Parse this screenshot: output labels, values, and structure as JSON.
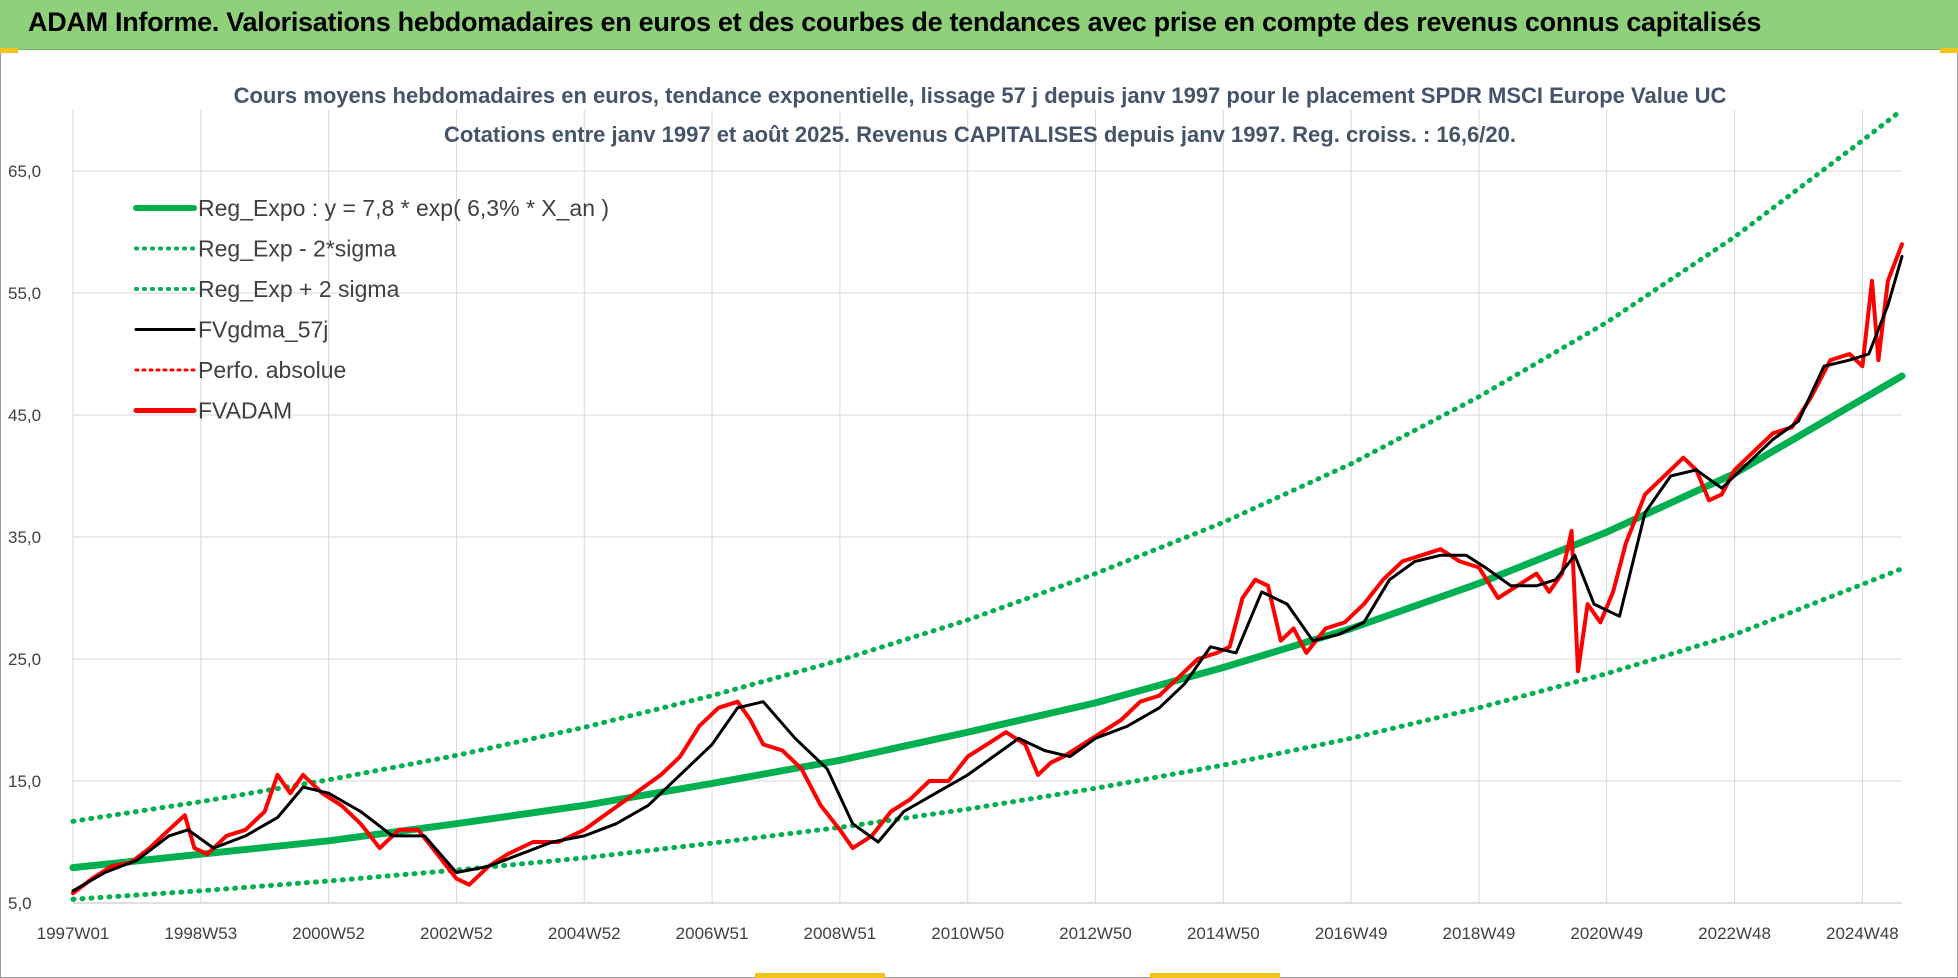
{
  "header": {
    "banner_title": "ADAM Informe. Valorisations hebdomadaires en euros et des courbes de tendances avec prise en compte des revenus connus capitalisés"
  },
  "colors": {
    "banner": "#8fd17a",
    "trend_green": "#00b050",
    "price_red": "#ff0000",
    "smooth_black": "#000000",
    "title_text": "#44546a"
  },
  "chart_data": {
    "type": "line",
    "title": "Cours moyens hebdomadaires en euros, tendance exponentielle, lissage 57 j depuis janv 1997 pour le placement SPDR MSCI Europe Value UC",
    "subtitle": "Cotations entre janv 1997 et août 2025. Revenus CAPITALISES depuis janv 1997. Reg. croiss. : 16,6/20.",
    "xlabel": "",
    "ylabel": "",
    "x_range": [
      1997.0,
      2025.62
    ],
    "ylim": [
      5,
      70
    ],
    "yticks": [
      5,
      15,
      25,
      35,
      45,
      55,
      65
    ],
    "ytick_labels": [
      "5,0",
      "15,0",
      "25,0",
      "35,0",
      "45,0",
      "55,0",
      "65,0"
    ],
    "xtick_labels": [
      "1997W01",
      "1998W53",
      "2000W52",
      "2002W52",
      "2004W52",
      "2006W51",
      "2008W51",
      "2010W50",
      "2012W50",
      "2014W50",
      "2016W49",
      "2018W49",
      "2020W49",
      "2022W48",
      "2024W48"
    ],
    "xtick_positions": [
      1997.0,
      1999.0,
      2001.0,
      2003.0,
      2005.0,
      2007.0,
      2009.0,
      2011.0,
      2013.0,
      2015.0,
      2017.0,
      2019.0,
      2021.0,
      2023.0,
      2025.0
    ],
    "grid": true,
    "legend_position": "top-left",
    "legend": [
      {
        "label": "Reg_Expo : y = 7,8 * exp( 6,3% *  X_an )",
        "color": "#00b050",
        "style": "solid-thick"
      },
      {
        "label": "Reg_Exp - 2*sigma",
        "color": "#00b050",
        "style": "dotted"
      },
      {
        "label": "Reg_Exp + 2 sigma",
        "color": "#00b050",
        "style": "dotted"
      },
      {
        "label": "FVgdma_57j",
        "color": "#000000",
        "style": "solid"
      },
      {
        "label": "Perfo. absolue",
        "color": "#ff0000",
        "style": "dotted"
      },
      {
        "label": "FVADAM",
        "color": "#ff0000",
        "style": "solid-thick"
      }
    ],
    "series": [
      {
        "name": "Reg_Expo : y = 7,8 * exp( 6,3% *  X_an )",
        "x": [
          1997.0,
          1999.0,
          2001.0,
          2003.0,
          2005.0,
          2007.0,
          2009.0,
          2011.0,
          2013.0,
          2015.0,
          2017.0,
          2019.0,
          2021.0,
          2023.0,
          2025.62
        ],
        "y": [
          7.9,
          9.0,
          10.1,
          11.5,
          13.0,
          14.8,
          16.7,
          19.0,
          21.4,
          24.3,
          27.5,
          31.2,
          35.4,
          40.2,
          48.2
        ]
      },
      {
        "name": "Reg_Exp - 2*sigma",
        "x": [
          1997.0,
          1999.0,
          2001.0,
          2003.0,
          2005.0,
          2007.0,
          2009.0,
          2011.0,
          2013.0,
          2015.0,
          2017.0,
          2019.0,
          2021.0,
          2023.0,
          2025.62
        ],
        "y": [
          5.3,
          6.0,
          6.8,
          7.7,
          8.7,
          9.9,
          11.2,
          12.7,
          14.4,
          16.3,
          18.5,
          21.0,
          23.8,
          27.0,
          32.4
        ]
      },
      {
        "name": "Reg_Exp + 2 sigma",
        "x": [
          1997.0,
          1999.0,
          2001.0,
          2003.0,
          2005.0,
          2007.0,
          2009.0,
          2011.0,
          2013.0,
          2015.0,
          2017.0,
          2019.0,
          2021.0,
          2023.0,
          2025.0,
          2025.62
        ],
        "y": [
          11.7,
          13.3,
          15.1,
          17.1,
          19.4,
          22.0,
          24.9,
          28.2,
          32.0,
          36.2,
          41.0,
          46.5,
          52.6,
          59.6,
          67.5,
          70.0
        ]
      },
      {
        "name": "FVgdma_57j",
        "x": [
          1997.0,
          1997.5,
          1998.0,
          1998.5,
          1998.8,
          1999.2,
          1999.7,
          2000.2,
          2000.6,
          2001.0,
          2001.5,
          2002.0,
          2002.5,
          2003.0,
          2003.5,
          2004.0,
          2004.5,
          2005.0,
          2005.5,
          2006.0,
          2006.5,
          2007.0,
          2007.4,
          2007.8,
          2008.3,
          2008.8,
          2009.2,
          2009.6,
          2010.0,
          2010.5,
          2011.0,
          2011.4,
          2011.8,
          2012.2,
          2012.6,
          2013.0,
          2013.5,
          2014.0,
          2014.4,
          2014.8,
          2015.2,
          2015.6,
          2016.0,
          2016.4,
          2016.8,
          2017.2,
          2017.6,
          2018.0,
          2018.4,
          2018.8,
          2019.1,
          2019.5,
          2019.9,
          2020.2,
          2020.5,
          2020.8,
          2021.2,
          2021.6,
          2022.0,
          2022.4,
          2022.8,
          2023.2,
          2023.6,
          2024.0,
          2024.4,
          2024.8,
          2025.1,
          2025.4,
          2025.62
        ],
        "y": [
          6.0,
          7.5,
          8.5,
          10.5,
          11.0,
          9.5,
          10.5,
          12.0,
          14.5,
          14.0,
          12.5,
          10.5,
          10.5,
          7.5,
          8.0,
          9.0,
          10.0,
          10.5,
          11.5,
          13.0,
          15.5,
          18.0,
          21.0,
          21.5,
          18.5,
          16.0,
          11.5,
          10.0,
          12.5,
          14.0,
          15.5,
          17.0,
          18.5,
          17.5,
          17.0,
          18.5,
          19.5,
          21.0,
          23.0,
          26.0,
          25.5,
          30.5,
          29.5,
          26.5,
          27.0,
          28.0,
          31.5,
          33.0,
          33.5,
          33.5,
          32.5,
          31.0,
          31.0,
          31.5,
          33.5,
          29.5,
          28.5,
          37.0,
          40.0,
          40.5,
          39.0,
          41.0,
          43.0,
          44.5,
          49.0,
          49.5,
          50.0,
          54.0,
          58.0
        ]
      },
      {
        "name": "FVADAM",
        "x": [
          1997.0,
          1997.3,
          1997.6,
          1997.9,
          1998.2,
          1998.5,
          1998.75,
          1998.9,
          1999.1,
          1999.4,
          1999.7,
          2000.0,
          2000.2,
          2000.4,
          2000.6,
          2000.9,
          2001.2,
          2001.5,
          2001.8,
          2002.1,
          2002.4,
          2002.7,
          2003.0,
          2003.2,
          2003.5,
          2003.8,
          2004.2,
          2004.6,
          2005.0,
          2005.4,
          2005.8,
          2006.2,
          2006.5,
          2006.8,
          2007.1,
          2007.4,
          2007.6,
          2007.8,
          2008.1,
          2008.4,
          2008.7,
          2009.0,
          2009.2,
          2009.5,
          2009.8,
          2010.1,
          2010.4,
          2010.7,
          2011.0,
          2011.3,
          2011.6,
          2011.9,
          2012.1,
          2012.3,
          2012.5,
          2012.8,
          2013.1,
          2013.4,
          2013.7,
          2014.0,
          2014.3,
          2014.6,
          2014.9,
          2015.1,
          2015.3,
          2015.5,
          2015.7,
          2015.9,
          2016.1,
          2016.3,
          2016.6,
          2016.9,
          2017.2,
          2017.5,
          2017.8,
          2018.1,
          2018.4,
          2018.7,
          2019.0,
          2019.3,
          2019.6,
          2019.9,
          2020.1,
          2020.3,
          2020.45,
          2020.55,
          2020.7,
          2020.9,
          2021.1,
          2021.3,
          2021.6,
          2021.9,
          2022.2,
          2022.4,
          2022.6,
          2022.8,
          2023.0,
          2023.3,
          2023.6,
          2023.9,
          2024.2,
          2024.5,
          2024.8,
          2025.0,
          2025.15,
          2025.25,
          2025.4,
          2025.62
        ],
        "y": [
          5.8,
          7.0,
          8.0,
          8.3,
          9.5,
          11.0,
          12.2,
          9.5,
          9.0,
          10.5,
          11.0,
          12.5,
          15.5,
          14.0,
          15.5,
          14.0,
          13.0,
          11.5,
          9.5,
          11.0,
          11.0,
          9.0,
          7.0,
          6.5,
          8.0,
          9.0,
          10.0,
          10.0,
          11.0,
          12.5,
          14.0,
          15.5,
          17.0,
          19.5,
          21.0,
          21.5,
          20.0,
          18.0,
          17.5,
          16.0,
          13.0,
          11.0,
          9.5,
          10.5,
          12.5,
          13.5,
          15.0,
          15.0,
          17.0,
          18.0,
          19.0,
          18.0,
          15.5,
          16.5,
          17.0,
          18.0,
          19.0,
          20.0,
          21.5,
          22.0,
          23.5,
          25.0,
          25.5,
          26.0,
          30.0,
          31.5,
          31.0,
          26.5,
          27.5,
          25.5,
          27.5,
          28.0,
          29.5,
          31.5,
          33.0,
          33.5,
          34.0,
          33.0,
          32.5,
          30.0,
          31.0,
          32.0,
          30.5,
          32.0,
          35.5,
          24.0,
          29.5,
          28.0,
          30.5,
          34.5,
          38.5,
          40.0,
          41.5,
          40.5,
          38.0,
          38.5,
          40.5,
          42.0,
          43.5,
          44.0,
          46.5,
          49.5,
          50.0,
          49.0,
          56.0,
          49.5,
          56.0,
          59.0
        ]
      }
    ]
  }
}
